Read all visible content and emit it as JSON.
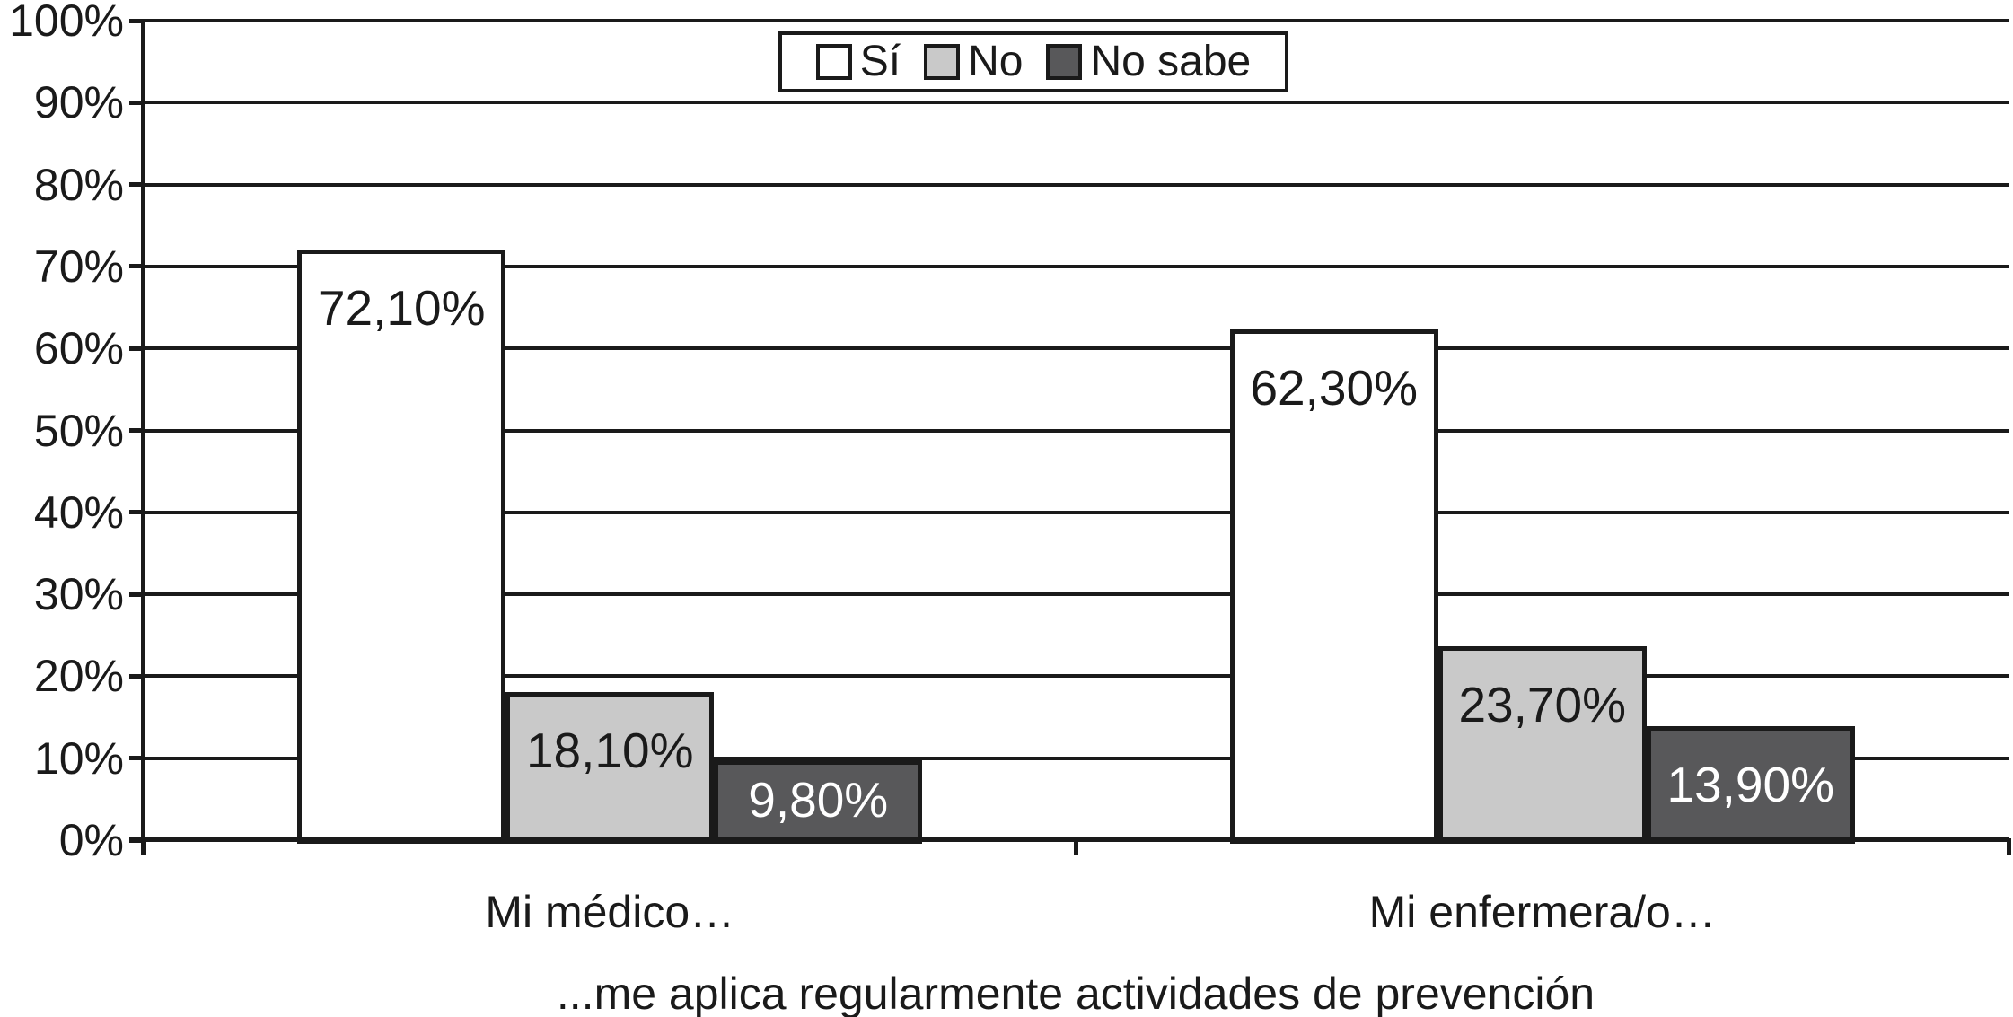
{
  "chart_data": {
    "type": "bar",
    "categories": [
      "Mi médico…",
      "Mi enfermera/o…"
    ],
    "series": [
      {
        "name": "Sí",
        "values": [
          72.1,
          62.3
        ],
        "labels": [
          "72,10%",
          "62,30%"
        ],
        "color": "#ffffff",
        "label_color": "#1a1a1a"
      },
      {
        "name": "No",
        "values": [
          18.1,
          23.7
        ],
        "labels": [
          "18,10%",
          "23,70%"
        ],
        "color": "#c9c9c9",
        "label_color": "#1a1a1a"
      },
      {
        "name": "No sabe",
        "values": [
          9.8,
          13.9
        ],
        "labels": [
          "9,80%",
          "13,90%"
        ],
        "color": "#58585a",
        "label_color": "#ffffff"
      }
    ],
    "xlabel": "...me aplica regularmente actividades de prevención",
    "ylabel": "",
    "ylim": [
      0,
      100
    ],
    "y_tick_step": 10,
    "y_ticks": [
      "0%",
      "10%",
      "20%",
      "30%",
      "40%",
      "50%",
      "60%",
      "70%",
      "80%",
      "90%",
      "100%"
    ],
    "grid": true,
    "legend_position": "top-center",
    "colors": {
      "line": "#1a1a1a",
      "background": "#ffffff",
      "bar_border": "#1a1a1a"
    }
  }
}
